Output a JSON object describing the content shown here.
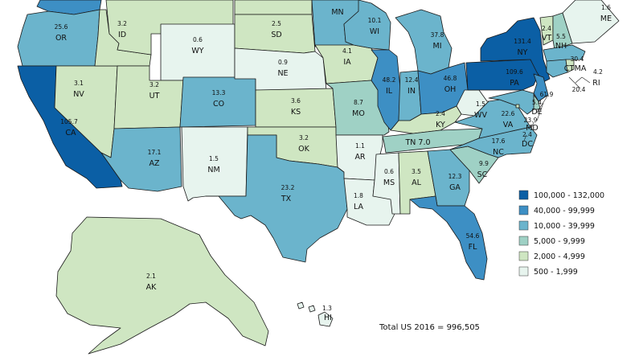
{
  "colors": {
    "c1": "#0b5fa5",
    "c2": "#3d8fc4",
    "c3": "#6bb4cc",
    "c4": "#9fd1c5",
    "c5": "#cfe6c2",
    "c6": "#e7f4ee",
    "border": "#1a1a1a"
  },
  "legend": [
    {
      "label": "100,000 - 132,000",
      "color": "#0b5fa5"
    },
    {
      "label": "40,000 - 99,999",
      "color": "#3d8fc4"
    },
    {
      "label": "10,000 - 39,999",
      "color": "#6bb4cc"
    },
    {
      "label": "5,000 - 9,999",
      "color": "#9fd1c5"
    },
    {
      "label": "2,000 - 4,999",
      "color": "#cfe6c2"
    },
    {
      "label": "500 - 1,999",
      "color": "#e7f4ee"
    }
  ],
  "total": "Total US 2016 = 996,505",
  "states": [
    {
      "abbr": "WA",
      "value": "",
      "cls": "c2"
    },
    {
      "abbr": "OR",
      "value": "25.6",
      "cls": "c3"
    },
    {
      "abbr": "CA",
      "value": "105.7",
      "cls": "c1"
    },
    {
      "abbr": "NV",
      "value": "3.1",
      "cls": "c5"
    },
    {
      "abbr": "ID",
      "value": "3.2",
      "cls": "c5"
    },
    {
      "abbr": "MT",
      "value": "",
      "cls": "c5"
    },
    {
      "abbr": "WY",
      "value": "0.6",
      "cls": "c6"
    },
    {
      "abbr": "UT",
      "value": "3.2",
      "cls": "c5"
    },
    {
      "abbr": "AZ",
      "value": "17.1",
      "cls": "c3"
    },
    {
      "abbr": "CO",
      "value": "13.3",
      "cls": "c3"
    },
    {
      "abbr": "NM",
      "value": "1.5",
      "cls": "c6"
    },
    {
      "abbr": "ND",
      "value": "",
      "cls": "c5"
    },
    {
      "abbr": "SD",
      "value": "2.5",
      "cls": "c5"
    },
    {
      "abbr": "NE",
      "value": "0.9",
      "cls": "c6"
    },
    {
      "abbr": "KS",
      "value": "3.6",
      "cls": "c5"
    },
    {
      "abbr": "OK",
      "value": "3.2",
      "cls": "c5"
    },
    {
      "abbr": "TX",
      "value": "23.2",
      "cls": "c3"
    },
    {
      "abbr": "MN",
      "value": "",
      "cls": "c3"
    },
    {
      "abbr": "IA",
      "value": "4.1",
      "cls": "c5"
    },
    {
      "abbr": "MO",
      "value": "8.7",
      "cls": "c4"
    },
    {
      "abbr": "AR",
      "value": "1.1",
      "cls": "c6"
    },
    {
      "abbr": "LA",
      "value": "1.8",
      "cls": "c6"
    },
    {
      "abbr": "WI",
      "value": "10.1",
      "cls": "c3"
    },
    {
      "abbr": "IL",
      "value": "48.2",
      "cls": "c2"
    },
    {
      "abbr": "MI",
      "value": "37.8",
      "cls": "c3"
    },
    {
      "abbr": "IN",
      "value": "12.4",
      "cls": "c3"
    },
    {
      "abbr": "OH",
      "value": "46.8",
      "cls": "c2"
    },
    {
      "abbr": "KY",
      "value": "2.4",
      "cls": "c5"
    },
    {
      "abbr": "TN",
      "value": "7.0",
      "cls": "c4"
    },
    {
      "abbr": "MS",
      "value": "0.6",
      "cls": "c6"
    },
    {
      "abbr": "AL",
      "value": "3.5",
      "cls": "c5"
    },
    {
      "abbr": "GA",
      "value": "12.3",
      "cls": "c3"
    },
    {
      "abbr": "FL",
      "value": "54.6",
      "cls": "c2"
    },
    {
      "abbr": "SC",
      "value": "9.9",
      "cls": "c4"
    },
    {
      "abbr": "NC",
      "value": "17.6",
      "cls": "c3"
    },
    {
      "abbr": "VA",
      "value": "22.6",
      "cls": "c3"
    },
    {
      "abbr": "WV",
      "value": "1.5",
      "cls": "c6"
    },
    {
      "abbr": "PA",
      "value": "109.6",
      "cls": "c1"
    },
    {
      "abbr": "NY",
      "value": "131.4",
      "cls": "c1"
    },
    {
      "abbr": "VT",
      "value": "2.4",
      "cls": "c5"
    },
    {
      "abbr": "NH",
      "value": "5.5",
      "cls": "c4"
    },
    {
      "abbr": "ME",
      "value": "1.6",
      "cls": "c6"
    },
    {
      "abbr": "MA",
      "value": "30.4",
      "cls": "c3"
    },
    {
      "abbr": "CT",
      "value": "",
      "cls": "c3"
    },
    {
      "abbr": "RI",
      "value": "4.2",
      "cls": "c5"
    },
    {
      "abbr": "NJ",
      "value": "61.9",
      "cls": "c2"
    },
    {
      "abbr": "DE",
      "value": "5.4",
      "cls": "c4"
    },
    {
      "abbr": "MD",
      "value": "23.9",
      "cls": "c3"
    },
    {
      "abbr": "DC",
      "value": "2.4",
      "cls": "c5"
    },
    {
      "abbr": "AK",
      "value": "2.1",
      "cls": "c5"
    },
    {
      "abbr": "HI",
      "value": "1.3",
      "cls": "c6"
    }
  ],
  "extra_labels": {
    "ct_value": "20.4"
  }
}
